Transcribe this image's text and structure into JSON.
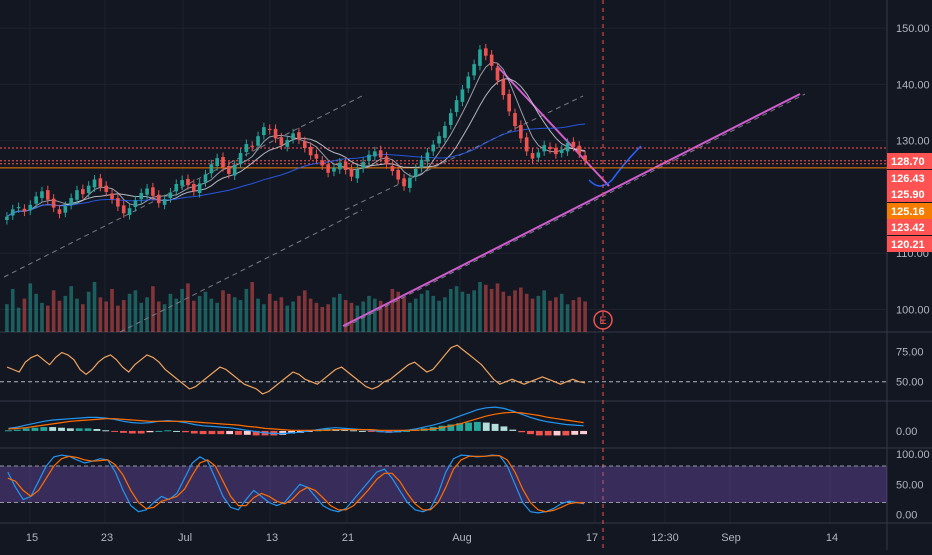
{
  "chart_data": [
    {
      "type": "candlestick",
      "panel": "price",
      "y_ticks": [
        "150.00",
        "140.00",
        "130.00",
        "110.00",
        "100.00"
      ],
      "y_tick_values": [
        150,
        140,
        130,
        110,
        100
      ],
      "ylim": [
        96,
        155
      ],
      "price_labels": [
        {
          "text": "128.70",
          "value": 128.7,
          "color": "#ff5252"
        },
        {
          "text": "126.43",
          "value": 126.43,
          "color": "#ff5252"
        },
        {
          "text": "125.90",
          "value": 125.9,
          "color": "#ff5252"
        },
        {
          "text": "125.16",
          "value": 125.16,
          "color": "#f57c00"
        },
        {
          "text": "123.42",
          "value": 123.42,
          "color": "#ff5252"
        },
        {
          "text": "120.21",
          "value": 120.21,
          "color": "#ff5252"
        }
      ],
      "horizontal_lines": [
        {
          "value": 128.7,
          "color": "#ff5252",
          "style": "dotted"
        },
        {
          "value": 126.43,
          "color": "#ff5252",
          "style": "dotted"
        },
        {
          "value": 125.9,
          "color": "#ff5252",
          "style": "dotted"
        },
        {
          "value": 125.16,
          "color": "#f57c00",
          "style": "solid"
        }
      ],
      "earnings_marker": "E",
      "closes": [
        116.5,
        117.8,
        118.2,
        117.4,
        118.6,
        120.1,
        121.0,
        119.5,
        118.1,
        117.0,
        118.4,
        119.8,
        121.2,
        120.5,
        122.0,
        123.1,
        121.8,
        120.9,
        119.6,
        118.3,
        117.1,
        118.0,
        119.4,
        120.7,
        121.5,
        120.2,
        118.9,
        119.6,
        120.8,
        122.3,
        123.0,
        122.1,
        121.0,
        122.4,
        124.0,
        125.8,
        126.9,
        125.3,
        124.1,
        125.7,
        127.8,
        129.4,
        128.9,
        130.8,
        132.4,
        131.9,
        130.4,
        129.2,
        130.1,
        131.3,
        130.2,
        128.7,
        127.4,
        126.8,
        125.6,
        124.3,
        125.2,
        126.1,
        124.8,
        123.6,
        124.9,
        126.2,
        127.5,
        128.1,
        127.0,
        125.8,
        124.6,
        123.1,
        121.9,
        123.4,
        125.0,
        126.6,
        127.9,
        129.3,
        130.8,
        132.6,
        134.9,
        137.2,
        139.1,
        141.4,
        143.6,
        146.2,
        145.1,
        143.3,
        140.7,
        138.1,
        135.2,
        132.6,
        130.4,
        128.1,
        126.8,
        127.9,
        129.2,
        128.5,
        127.6,
        128.4,
        129.6,
        128.9,
        127.7,
        126.4
      ],
      "volume_units": [
        "relative"
      ],
      "volumes": [
        40,
        62,
        35,
        48,
        70,
        55,
        42,
        38,
        60,
        45,
        52,
        66,
        48,
        40,
        58,
        72,
        50,
        44,
        62,
        38,
        46,
        55,
        60,
        42,
        50,
        66,
        44,
        40,
        55,
        48,
        62,
        70,
        45,
        52,
        58,
        48,
        42,
        60,
        55,
        50,
        46,
        62,
        72,
        48,
        40,
        55,
        45,
        50,
        38,
        44,
        52,
        60,
        48,
        42,
        36,
        40,
        50,
        55,
        46,
        42,
        38,
        44,
        52,
        48,
        45,
        40,
        62,
        58,
        50,
        42,
        48,
        55,
        60,
        52,
        45,
        50,
        62,
        66,
        58,
        55,
        60,
        72,
        68,
        62,
        70,
        58,
        52,
        60,
        64,
        55,
        48,
        52,
        60,
        45,
        50,
        55,
        40,
        46,
        50,
        44
      ]
    },
    {
      "type": "line",
      "panel": "rsi",
      "y_ticks": [
        "75.00",
        "50.00"
      ],
      "y_tick_values": [
        75,
        50
      ],
      "ylim": [
        35,
        90
      ],
      "values": [
        62,
        60,
        58,
        66,
        70,
        72,
        68,
        64,
        70,
        74,
        72,
        68,
        60,
        56,
        60,
        66,
        70,
        72,
        68,
        62,
        58,
        64,
        68,
        72,
        70,
        66,
        60,
        56,
        52,
        48,
        44,
        46,
        50,
        54,
        58,
        62,
        60,
        56,
        52,
        48,
        46,
        44,
        40,
        42,
        46,
        50,
        54,
        58,
        56,
        52,
        50,
        48,
        52,
        56,
        60,
        62,
        58,
        54,
        50,
        46,
        44,
        46,
        50,
        52,
        56,
        60,
        64,
        66,
        62,
        58,
        60,
        66,
        72,
        78,
        80,
        76,
        72,
        68,
        64,
        58,
        52,
        48,
        50,
        52,
        50,
        48,
        50,
        52,
        54,
        52,
        50,
        48,
        50,
        52,
        50,
        49
      ]
    },
    {
      "type": "macd",
      "panel": "macd",
      "y_ticks": [
        "0.00"
      ],
      "y_tick_values": [
        0
      ],
      "ylim": [
        -2.5,
        4.5
      ],
      "macd": [
        0.4,
        0.6,
        0.9,
        1.2,
        1.5,
        1.7,
        1.8,
        1.9,
        2.0,
        2.1,
        2.1,
        2.0,
        1.8,
        1.5,
        1.3,
        1.2,
        1.3,
        1.5,
        1.6,
        1.5,
        1.3,
        1.0,
        0.8,
        0.7,
        0.6,
        0.5,
        0.3,
        0.1,
        -0.1,
        -0.3,
        -0.4,
        -0.4,
        -0.3,
        -0.2,
        0.0,
        0.2,
        0.4,
        0.5,
        0.4,
        0.3,
        0.2,
        0.1,
        -0.1,
        -0.2,
        -0.1,
        0.1,
        0.3,
        0.6,
        0.9,
        1.3,
        1.8,
        2.3,
        2.8,
        3.3,
        3.6,
        3.7,
        3.5,
        3.1,
        2.6,
        2.1,
        1.7,
        1.4,
        1.2,
        1.0,
        0.9,
        0.8
      ],
      "signal": [
        0.3,
        0.4,
        0.5,
        0.7,
        0.9,
        1.1,
        1.3,
        1.5,
        1.6,
        1.7,
        1.8,
        1.9,
        1.9,
        1.8,
        1.7,
        1.6,
        1.5,
        1.5,
        1.5,
        1.5,
        1.5,
        1.4,
        1.3,
        1.2,
        1.1,
        1.0,
        0.9,
        0.7,
        0.6,
        0.4,
        0.3,
        0.2,
        0.1,
        0.1,
        0.1,
        0.1,
        0.1,
        0.2,
        0.2,
        0.2,
        0.2,
        0.2,
        0.1,
        0.1,
        0.1,
        0.1,
        0.1,
        0.2,
        0.3,
        0.5,
        0.8,
        1.1,
        1.5,
        1.9,
        2.3,
        2.6,
        2.8,
        2.9,
        2.8,
        2.6,
        2.4,
        2.1,
        1.9,
        1.7,
        1.5,
        1.3
      ]
    },
    {
      "type": "line",
      "panel": "stochastic",
      "y_ticks": [
        "100.00",
        "50.00",
        "0.00"
      ],
      "y_tick_values": [
        100,
        50,
        0
      ],
      "ylim": [
        -12,
        108
      ],
      "band": [
        20,
        80
      ],
      "k": [
        70,
        45,
        25,
        30,
        55,
        80,
        95,
        98,
        96,
        90,
        85,
        88,
        92,
        90,
        70,
        40,
        15,
        5,
        8,
        20,
        30,
        25,
        35,
        60,
        85,
        95,
        88,
        60,
        30,
        12,
        8,
        25,
        40,
        30,
        20,
        15,
        20,
        35,
        50,
        45,
        30,
        15,
        8,
        5,
        10,
        25,
        40,
        55,
        70,
        75,
        60,
        40,
        20,
        8,
        5,
        10,
        35,
        70,
        92,
        98,
        97,
        95,
        96,
        98,
        97,
        80,
        50,
        20,
        5,
        3,
        5,
        10,
        18,
        22,
        20,
        18
      ],
      "d": [
        60,
        55,
        40,
        30,
        40,
        60,
        80,
        92,
        96,
        94,
        90,
        88,
        89,
        90,
        82,
        65,
        40,
        20,
        10,
        12,
        22,
        26,
        30,
        42,
        65,
        85,
        90,
        80,
        55,
        30,
        15,
        15,
        28,
        35,
        30,
        22,
        18,
        25,
        38,
        45,
        40,
        28,
        15,
        8,
        8,
        15,
        28,
        42,
        58,
        68,
        68,
        55,
        35,
        18,
        8,
        8,
        20,
        45,
        75,
        90,
        96,
        96,
        96,
        97,
        97,
        90,
        70,
        42,
        20,
        8,
        5,
        7,
        12,
        18,
        20,
        19
      ]
    }
  ],
  "x_axis_labels": [
    "15",
    "23",
    "Jul",
    "13",
    "21",
    "Aug",
    "17",
    "12:30",
    "Sep",
    "14"
  ]
}
